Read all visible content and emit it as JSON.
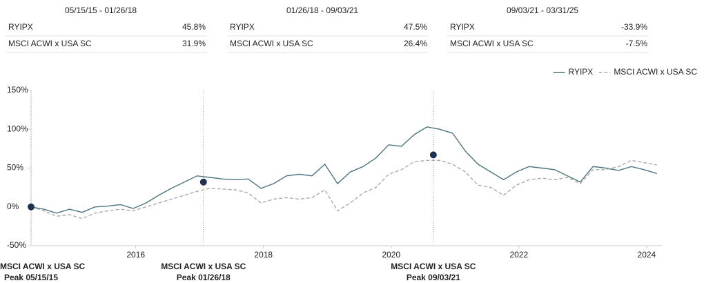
{
  "periods": [
    {
      "range": "05/15/15 - 01/26/18",
      "rows": [
        [
          "RYIPX",
          "45.8%"
        ],
        [
          "MSCI ACWI x USA SC",
          "31.9%"
        ]
      ]
    },
    {
      "range": "01/26/18 - 09/03/21",
      "rows": [
        [
          "RYIPX",
          "47.5%"
        ],
        [
          "MSCI ACWI x USA SC",
          "26.4%"
        ]
      ]
    },
    {
      "range": "09/03/21 - 03/31/25",
      "rows": [
        [
          "RYIPX",
          "-33.9%"
        ],
        [
          "MSCI ACWI x USA SC",
          "-7.5%"
        ]
      ]
    }
  ],
  "chart_data": {
    "type": "line",
    "x": [
      2014.36,
      2014.56,
      2014.76,
      2014.96,
      2015.16,
      2015.36,
      2015.56,
      2015.76,
      2015.96,
      2016.16,
      2016.36,
      2016.56,
      2016.76,
      2016.96,
      2017.16,
      2017.36,
      2017.56,
      2017.76,
      2017.96,
      2018.16,
      2018.36,
      2018.56,
      2018.76,
      2018.96,
      2019.16,
      2019.36,
      2019.56,
      2019.76,
      2019.96,
      2020.16,
      2020.36,
      2020.56,
      2020.76,
      2020.96,
      2021.16,
      2021.36,
      2021.56,
      2021.76,
      2021.96,
      2022.16,
      2022.36,
      2022.56,
      2022.76,
      2022.96,
      2023.16,
      2023.36,
      2023.56,
      2023.76,
      2023.96,
      2024.16
    ],
    "series": [
      {
        "name": "RYIPX",
        "color": "#4d7380",
        "dashed": false,
        "values": [
          0,
          -3,
          -8,
          -3,
          -7,
          0,
          1,
          3,
          -2,
          5,
          15,
          24,
          32,
          40,
          38,
          36,
          35,
          36,
          24,
          30,
          40,
          42,
          40,
          55,
          30,
          45,
          52,
          63,
          80,
          78,
          93,
          103,
          100,
          95,
          72,
          55,
          45,
          35,
          45,
          52,
          50,
          48,
          40,
          32,
          52,
          50,
          47,
          52,
          48,
          43
        ]
      },
      {
        "name": "MSCI ACWI x USA SC",
        "color": "#a9a9a9",
        "dashed": true,
        "values": [
          0,
          -5,
          -12,
          -10,
          -15,
          -8,
          -5,
          -3,
          -5,
          0,
          5,
          10,
          15,
          20,
          24,
          23,
          22,
          18,
          5,
          10,
          12,
          10,
          12,
          22,
          -5,
          5,
          18,
          25,
          42,
          48,
          58,
          60,
          60,
          55,
          45,
          28,
          25,
          15,
          28,
          35,
          37,
          35,
          38,
          30,
          48,
          48,
          52,
          60,
          57,
          54
        ]
      }
    ],
    "xlim": [
      2014.36,
      2024.25
    ],
    "xticks": [
      2016,
      2018,
      2020,
      2022,
      2024
    ],
    "ylim": [
      -50,
      150
    ],
    "yticks": [
      {
        "value": -50,
        "label": "-50%"
      },
      {
        "value": 0,
        "label": "0%"
      },
      {
        "value": 50,
        "label": "50%"
      },
      {
        "value": 100,
        "label": "100%"
      },
      {
        "value": 150,
        "label": "150%"
      }
    ],
    "grid": false,
    "legend": "top-right",
    "peaks": [
      {
        "x": 2014.36,
        "value": 0,
        "label": "MSCI ACWI x USA SC",
        "sublabel": "Peak 05/15/15"
      },
      {
        "x": 2017.06,
        "value": 32,
        "label": "MSCI ACWI x USA SC",
        "sublabel": "Peak 01/26/18"
      },
      {
        "x": 2020.66,
        "value": 67,
        "label": "MSCI ACWI x USA SC",
        "sublabel": "Peak 09/03/21"
      }
    ],
    "peak_color": "#1f3050"
  }
}
